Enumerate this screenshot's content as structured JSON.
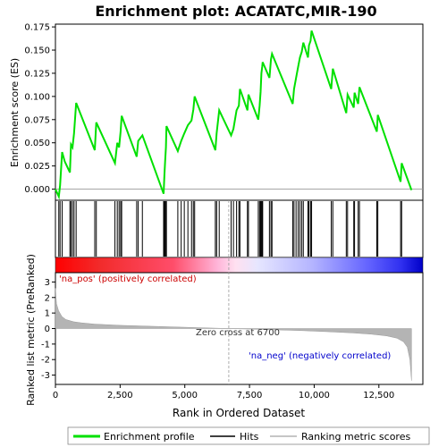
{
  "chart_data": {
    "type": "line",
    "title": "Enrichment plot: ACATATC,MIR-190",
    "xlabel": "Rank in Ordered Dataset",
    "ylabel_top": "Enrichment score (ES)",
    "ylabel_bottom": "Ranked list metric (PreRanked)",
    "xlim": [
      0,
      14200
    ],
    "x_ticks": [
      0,
      2500,
      5000,
      7500,
      10000,
      12500
    ],
    "x_tick_labels": [
      "0",
      "2,500",
      "5,000",
      "7,500",
      "10,000",
      "12,500"
    ],
    "es_ylim": [
      -0.012,
      0.178
    ],
    "es_ticks": [
      0.0,
      0.025,
      0.05,
      0.075,
      0.1,
      0.125,
      0.15,
      0.175
    ],
    "es_tick_labels": [
      "0.000",
      "0.025",
      "0.050",
      "0.075",
      "0.100",
      "0.125",
      "0.150",
      "0.175"
    ],
    "metric_ylim": [
      -3.6,
      3.6
    ],
    "metric_ticks": [
      -3,
      -2,
      -1,
      0,
      1,
      2,
      3
    ],
    "metric_tick_labels": [
      "-3",
      "-2",
      "-1",
      "0",
      "1",
      "2",
      "3"
    ],
    "series": [
      {
        "name": "Enrichment profile",
        "color": "#00e000",
        "x": [
          0,
          130,
          180,
          260,
          360,
          560,
          600,
          660,
          720,
          800,
          1520,
          1580,
          2300,
          2390,
          2460,
          2520,
          2560,
          3140,
          3200,
          3360,
          4180,
          4210,
          4240,
          4270,
          4290,
          4730,
          4860,
          4980,
          5120,
          5260,
          5330,
          5380,
          6180,
          6230,
          6330,
          6790,
          6880,
          7000,
          7090,
          7130,
          7420,
          7460,
          7840,
          7890,
          7930,
          7960,
          7990,
          8010,
          8270,
          8330,
          8370,
          9170,
          9220,
          9300,
          9380,
          9450,
          9520,
          9580,
          9760,
          9800,
          9860,
          9900,
          10660,
          10720,
          11240,
          11290,
          11530,
          11560,
          11700,
          11750,
          12420,
          12460,
          13340,
          13380,
          13760
        ],
        "y": [
          0.0,
          -0.008,
          0.004,
          0.04,
          0.03,
          0.018,
          0.048,
          0.045,
          0.06,
          0.093,
          0.042,
          0.072,
          0.028,
          0.05,
          0.045,
          0.062,
          0.079,
          0.035,
          0.052,
          0.058,
          -0.005,
          0.015,
          0.03,
          0.045,
          0.068,
          0.041,
          0.052,
          0.06,
          0.069,
          0.074,
          0.086,
          0.1,
          0.042,
          0.06,
          0.085,
          0.058,
          0.065,
          0.085,
          0.09,
          0.108,
          0.085,
          0.102,
          0.075,
          0.09,
          0.105,
          0.125,
          0.132,
          0.137,
          0.12,
          0.14,
          0.146,
          0.092,
          0.108,
          0.12,
          0.132,
          0.142,
          0.148,
          0.158,
          0.142,
          0.155,
          0.16,
          0.171,
          0.108,
          0.13,
          0.082,
          0.102,
          0.088,
          0.104,
          0.092,
          0.11,
          0.062,
          0.08,
          0.008,
          0.028,
          -0.001
        ]
      }
    ],
    "hits": [
      130,
      180,
      260,
      560,
      600,
      660,
      720,
      800,
      1520,
      1580,
      2300,
      2390,
      2460,
      2520,
      2560,
      3140,
      3200,
      3360,
      4180,
      4210,
      4240,
      4270,
      4290,
      4730,
      4860,
      4980,
      5120,
      5260,
      5330,
      5380,
      6180,
      6230,
      6330,
      6790,
      6880,
      7000,
      7090,
      7130,
      7420,
      7460,
      7840,
      7890,
      7930,
      7960,
      7990,
      8010,
      8270,
      8330,
      8370,
      9170,
      9220,
      9300,
      9380,
      9450,
      9520,
      9580,
      9760,
      9800,
      9860,
      9900,
      10660,
      10720,
      11240,
      11290,
      11530,
      11560,
      11700,
      11750,
      12420,
      12460,
      13340,
      13380
    ],
    "metric_profile": {
      "x": [
        0,
        40,
        120,
        250,
        400,
        700,
        1000,
        1500,
        2500,
        4000,
        5500,
        6700,
        8000,
        9500,
        10500,
        11500,
        12200,
        12800,
        13200,
        13450,
        13600,
        13700,
        13760
      ],
      "y": [
        2.6,
        1.6,
        1.15,
        0.78,
        0.58,
        0.44,
        0.37,
        0.29,
        0.21,
        0.13,
        0.06,
        0.0,
        -0.06,
        -0.13,
        -0.2,
        -0.28,
        -0.36,
        -0.47,
        -0.62,
        -0.85,
        -1.2,
        -2.0,
        -3.35
      ]
    },
    "zero_cross_rank": 6700,
    "annotations": {
      "pos_label": "'na_pos' (positively correlated)",
      "neg_label": "'na_neg' (negatively correlated)",
      "zero_cross_label": "Zero cross at 6700"
    },
    "legend": {
      "placement": "bottom",
      "entries": [
        {
          "label": "Enrichment profile",
          "color": "#00e000"
        },
        {
          "label": "Hits",
          "color": "#000000"
        },
        {
          "label": "Ranking metric scores",
          "color": "#b4b4b4"
        }
      ]
    }
  }
}
